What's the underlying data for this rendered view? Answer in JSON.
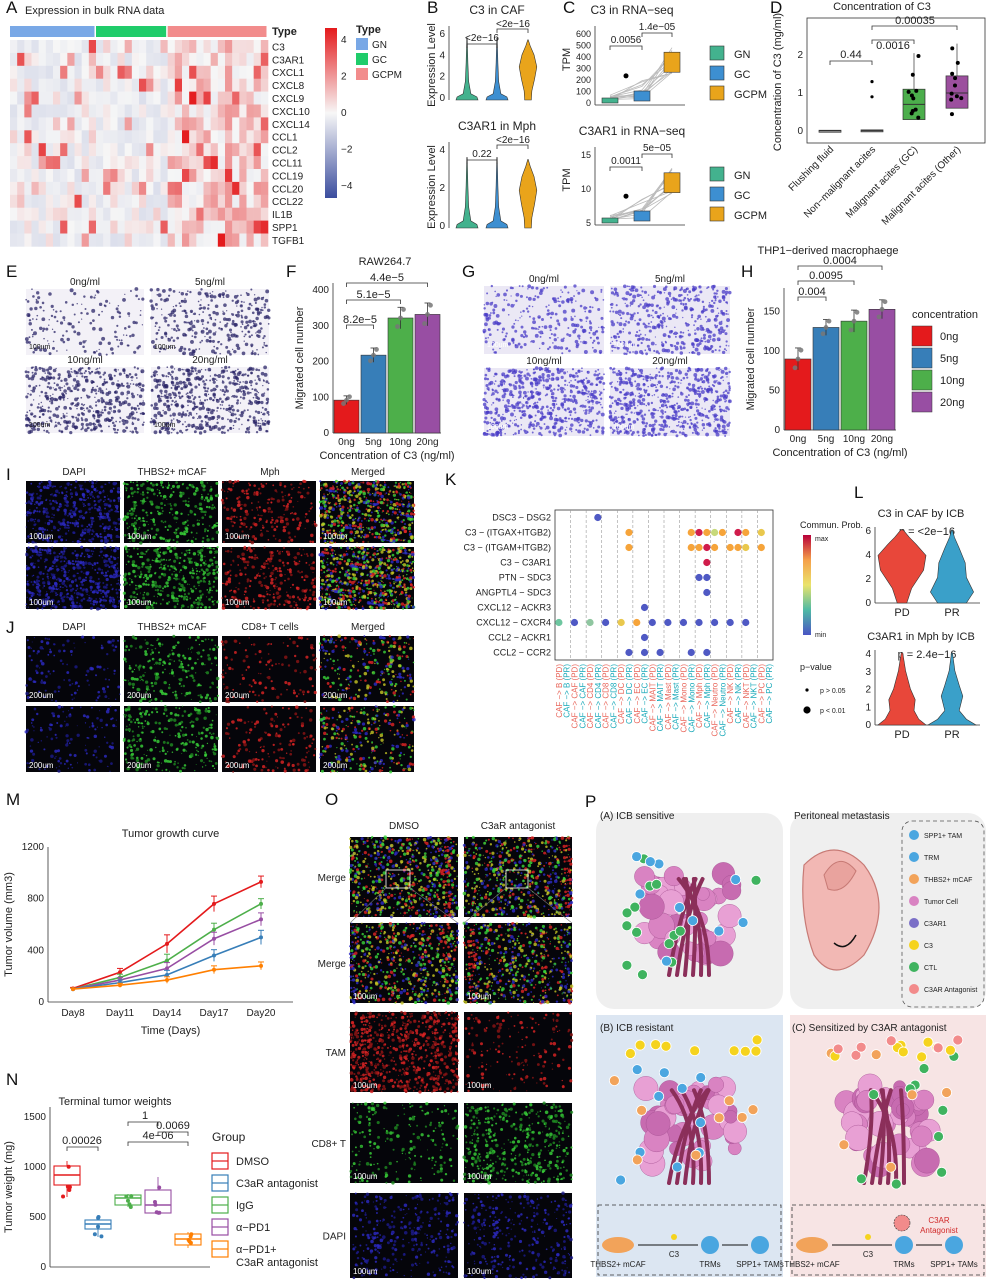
{
  "figure": {
    "panel_letters": [
      "A",
      "B",
      "C",
      "D",
      "E",
      "F",
      "G",
      "H",
      "I",
      "J",
      "K",
      "L",
      "M",
      "N",
      "O",
      "P"
    ]
  },
  "A": {
    "title": "Expression in bulk RNA data",
    "type_label": "Type",
    "legend_type_title": "Type",
    "genes": [
      "C3",
      "C3AR1",
      "CXCL1",
      "CXCL8",
      "CXCL9",
      "CXCL10",
      "CXCL14",
      "CCL1",
      "CCL2",
      "CCL11",
      "CCL19",
      "CCL20",
      "CCL22",
      "IL1B",
      "SPP1",
      "TGFB1"
    ],
    "groups": [
      {
        "name": "GN",
        "color": "#79a8e6"
      },
      {
        "name": "GC",
        "color": "#1fcc6a"
      },
      {
        "name": "GCPM",
        "color": "#f28c8c"
      }
    ],
    "group_order_in_bar": [
      "GN",
      "GC",
      "GCPM"
    ],
    "scale_ticks": [
      "4",
      "2",
      "0",
      "−2",
      "−4"
    ],
    "scale_colors": {
      "high": "#e41a1c",
      "mid": "#f7f7f7",
      "low": "#3b4d9e"
    }
  },
  "B": {
    "top": {
      "title": "C3 in CAF",
      "ylabel": "Expression Level",
      "yticks": [
        "6",
        "4",
        "2",
        "0"
      ],
      "p1": "<2e−16",
      "p2": "<2e−16"
    },
    "bottom": {
      "title": "C3AR1 in Mph",
      "ylabel": "Expression Level",
      "yticks": [
        "4",
        "2",
        "0"
      ],
      "p1": "0.22",
      "p2": "<2e−16"
    },
    "colors": [
      "#43b28e",
      "#3d8fd1",
      "#e9a41b"
    ]
  },
  "C": {
    "top": {
      "title": "C3 in RNA−seq",
      "ylabel": "TPM",
      "yticks": [
        "600",
        "500",
        "400",
        "300",
        "200",
        "100",
        "0"
      ],
      "p1": "0.0056",
      "p2": "1.4e−05"
    },
    "bottom": {
      "title": "C3AR1 in RNA−seq",
      "ylabel": "TPM",
      "yticks": [
        "15",
        "10",
        "5"
      ],
      "p1": "0.0011",
      "p2": "5e−05"
    },
    "legend": [
      {
        "name": "GN",
        "color": "#43b28e"
      },
      {
        "name": "GC",
        "color": "#3d8fd1"
      },
      {
        "name": "GCPM",
        "color": "#e9a41b"
      }
    ]
  },
  "D": {
    "title": "Concentration of C3",
    "ylabel": "Concentration of C3 (mg/ml)",
    "yticks": [
      "2",
      "1",
      "0"
    ],
    "categories": [
      "Flushing fluid",
      "Non−malignant acites",
      "Malignant acites (GC)",
      "Malignant acites (Other)"
    ],
    "pvals": [
      "0.44",
      "0.0016",
      "0.00035"
    ],
    "colors": [
      "#9e9e9e",
      "#9e9e9e",
      "#4cae4c",
      "#9c4f9e"
    ]
  },
  "E": {
    "labels": [
      "0ng/ml",
      "5ng/ml",
      "10ng/ml",
      "20ng/ml"
    ],
    "scale": "100um"
  },
  "F": {
    "title": "RAW264.7",
    "ylabel": "Migrated cell number",
    "xlabel": "Concentration of C3 (ng/ml)",
    "yticks": [
      "400",
      "300",
      "200",
      "100",
      "0"
    ],
    "categories": [
      "0ng",
      "5ng",
      "10ng",
      "20ng"
    ],
    "pvals": [
      "8.2e−5",
      "5.1e−5",
      "4.4e−5"
    ]
  },
  "G": {
    "labels": [
      "0ng/ml",
      "5ng/ml",
      "10ng/ml",
      "20ng/ml"
    ],
    "scale": "100um"
  },
  "H": {
    "title": "THP1−derived macrophaege",
    "ylabel": "Migrated cell number",
    "xlabel": "Concentration of C3 (ng/ml)",
    "yticks": [
      "150",
      "100",
      "50",
      "0"
    ],
    "categories": [
      "0ng",
      "5ng",
      "10ng",
      "20ng"
    ],
    "pvals": [
      "0.004",
      "0.0095",
      "0.0004"
    ],
    "legend_title": "concentration",
    "legend": [
      {
        "name": "0ng",
        "color": "#e41a1c"
      },
      {
        "name": "5ng",
        "color": "#377eb8"
      },
      {
        "name": "10ng",
        "color": "#4daf4a"
      },
      {
        "name": "20ng",
        "color": "#984ea3"
      }
    ]
  },
  "I": {
    "headers": [
      "DAPI",
      "THBS2+ mCAF",
      "Mph",
      "Merged"
    ],
    "scale": "100um"
  },
  "J": {
    "headers": [
      "DAPI",
      "THBS2+ mCAF",
      "CD8+ T cells",
      "Merged"
    ],
    "scale": "200um"
  },
  "K": {
    "pairs": [
      "DSC3 − DSG2",
      "C3 − (ITGAX+ITGB2)",
      "C3 − (ITGAM+ITGB2)",
      "C3 − C3AR1",
      "PTN − SDC3",
      "ANGPTL4 − SDC3",
      "CXCL12 − ACKR3",
      "CXCL12 − CXCR4",
      "CCL2 − ACKR1",
      "CCL2 − CCR2"
    ],
    "xlabels": [
      "CAF −> B (PD)",
      "CAF −> B (PR)",
      "CAF −> CAF (PD)",
      "CAF −> CAF (PR)",
      "CAF −> CD4 (PD)",
      "CAF −> CD4 (PR)",
      "CAF −> CD8 (PD)",
      "CAF −> CD8 (PR)",
      "CAF −> DC (PD)",
      "CAF −> DC (PR)",
      "CAF −> EC (PD)",
      "CAF −> EC (PR)",
      "CAF −> MAIT (PD)",
      "CAF −> MAIT (PR)",
      "CAF −> Mast (PD)",
      "CAF −> Mast (PR)",
      "CAF −> Mono (PD)",
      "CAF −> Mono (PR)",
      "CAF −> Mph (PD)",
      "CAF −> Mph (PR)",
      "CAF −> Neutro (PD)",
      "CAF −> Neutro (PR)",
      "CAF −> NK (PD)",
      "CAF −> NK (PR)",
      "CAF −> NKT (PD)",
      "CAF −> NKT (PR)",
      "CAF −> PC (PD)",
      "CAF −> PC (PR)"
    ],
    "legend_title": "Commun. Prob.",
    "legend_max": "max",
    "legend_min": "min",
    "pval_title": "p−value",
    "pval_items": [
      "p > 0.05",
      "p < 0.01"
    ]
  },
  "L": {
    "top": {
      "title": "C3 in CAF by ICB",
      "p": "p = <2e−16",
      "yticks": [
        "6",
        "4",
        "2",
        "0"
      ]
    },
    "bottom": {
      "title": "C3AR1 in Mph by ICB",
      "p": "p = 2.4e−16",
      "yticks": [
        "4",
        "3",
        "2",
        "1",
        "0"
      ]
    },
    "categories": [
      "PD",
      "PR"
    ],
    "colors": [
      "#e8473a",
      "#3aa0c9"
    ]
  },
  "M": {
    "title": "Tumor growth curve",
    "ylabel": "Tumor volume (mm3)",
    "xlabel": "Time (Days)",
    "yticks": [
      "1200",
      "800",
      "400",
      "0"
    ],
    "xticks": [
      "Day8",
      "Day11",
      "Day14",
      "Day17",
      "Day20"
    ]
  },
  "N": {
    "title": "Terminal tumor weights",
    "ylabel": "Tumor weight (mg)",
    "yticks": [
      "1500",
      "1000",
      "500",
      "0"
    ],
    "pvals": [
      "0.00026",
      "1",
      "0.0069",
      "4e−06"
    ],
    "legend_title": "Group",
    "legend": [
      {
        "name": "DMSO",
        "color": "#e41a1c"
      },
      {
        "name": "C3aR antagonist",
        "color": "#377eb8"
      },
      {
        "name": "IgG",
        "color": "#4daf4a"
      },
      {
        "name": "α−PD1",
        "color": "#984ea3"
      },
      {
        "name": "α−PD1+\nC3aR antagonist",
        "color": "#ff7f00"
      }
    ]
  },
  "O": {
    "col_headers": [
      "DMSO",
      "C3aR antagonist"
    ],
    "row_labels": [
      "Merge",
      "Merge",
      "TAM",
      "CD8+ T",
      "DAPI"
    ],
    "scale": "100um"
  },
  "P": {
    "a_title": "(A) ICB sensitive",
    "pm_title": "Peritoneal metastasis",
    "b_title": "(B) ICB resistant",
    "c_title": "(C) Sensitized by C3AR antagonist",
    "legend": [
      "SPP1+ TAM",
      "TRM",
      "THBS2+ mCAF",
      "Tumor Cell",
      "C3AR1",
      "C3",
      "CTL",
      "C3AR Antagonist"
    ],
    "b_flow": [
      "THBS2+ mCAF",
      "C3",
      "TRMs",
      "SPP1+ TAMs"
    ],
    "c_flow": [
      "THBS2+ mCAF",
      "C3",
      "TRMs",
      "SPP1+ TAMs"
    ],
    "c_antagonist": "C3AR Antagonist"
  },
  "chart_data": [
    {
      "panel": "F",
      "type": "bar",
      "title": "RAW264.7",
      "xlabel": "Concentration of C3 (ng/ml)",
      "ylabel": "Migrated cell number",
      "categories": [
        "0ng",
        "5ng",
        "10ng",
        "20ng"
      ],
      "values": [
        92,
        218,
        322,
        332
      ],
      "errors": [
        12,
        20,
        30,
        32
      ],
      "colors": [
        "#e41a1c",
        "#377eb8",
        "#4daf4a",
        "#984ea3"
      ],
      "ylim": [
        0,
        420
      ]
    },
    {
      "panel": "H",
      "type": "bar",
      "title": "THP1−derived macrophaege",
      "xlabel": "Concentration of C3 (ng/ml)",
      "ylabel": "Migrated cell number",
      "categories": [
        "0ng",
        "5ng",
        "10ng",
        "20ng"
      ],
      "values": [
        90,
        130,
        138,
        153
      ],
      "errors": [
        14,
        10,
        14,
        12
      ],
      "colors": [
        "#e41a1c",
        "#377eb8",
        "#4daf4a",
        "#984ea3"
      ],
      "ylim": [
        0,
        180
      ]
    },
    {
      "panel": "M",
      "type": "line",
      "title": "Tumor growth curve",
      "xlabel": "Time (Days)",
      "ylabel": "Tumor volume (mm3)",
      "x": [
        "Day8",
        "Day11",
        "Day14",
        "Day17",
        "Day20"
      ],
      "ylim": [
        0,
        1200
      ],
      "series": [
        {
          "values": [
            105,
            230,
            450,
            760,
            930
          ],
          "errors": [
            8,
            30,
            70,
            60,
            45
          ],
          "color": "#e41a1c"
        },
        {
          "values": [
            100,
            190,
            320,
            560,
            760
          ],
          "errors": [
            8,
            25,
            50,
            50,
            40
          ],
          "color": "#4daf4a"
        },
        {
          "values": [
            100,
            170,
            260,
            490,
            640
          ],
          "errors": [
            8,
            20,
            45,
            50,
            50
          ],
          "color": "#984ea3"
        },
        {
          "values": [
            100,
            150,
            210,
            360,
            500
          ],
          "errors": [
            8,
            20,
            35,
            45,
            55
          ],
          "color": "#377eb8"
        },
        {
          "values": [
            100,
            130,
            170,
            250,
            280
          ],
          "errors": [
            8,
            15,
            25,
            30,
            30
          ],
          "color": "#ff7f00"
        }
      ]
    }
  ]
}
